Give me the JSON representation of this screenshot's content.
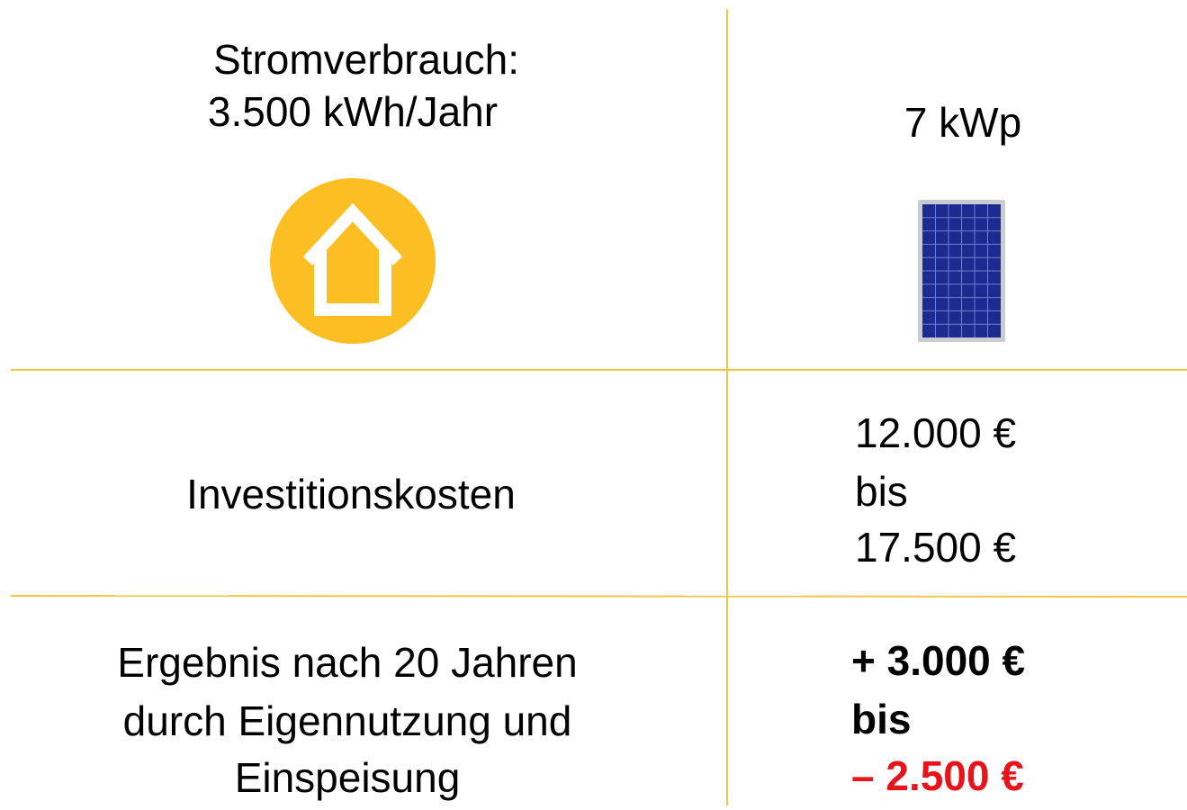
{
  "table": {
    "rows": [
      {
        "left": [
          "Stromverbrauch:",
          "3.500 kWh/Jahr"
        ],
        "right": [
          "7 kWp"
        ]
      },
      {
        "left": [
          "Investitionskosten"
        ],
        "right": [
          "12.000 €",
          "bis",
          "17.500 €"
        ]
      },
      {
        "left": [
          "Ergebnis nach 20 Jahren",
          "durch Eigennutzung und",
          "Einspeisung"
        ],
        "right": [
          "+ 3.000 €",
          "bis",
          "– 2.500 €"
        ]
      }
    ]
  }
}
